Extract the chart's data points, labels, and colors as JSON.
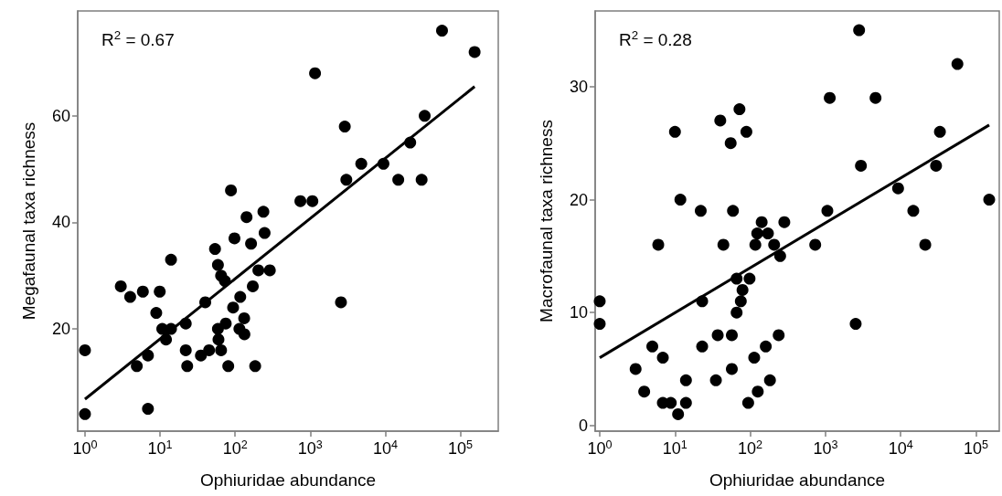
{
  "chart_data": [
    {
      "type": "scatter",
      "xlabel": "Ophiuridae abundance",
      "ylabel": "Megafaunal taxa richness",
      "annotations": [
        "R$^{2}$ = 0.67"
      ],
      "log": "x",
      "grid": false,
      "marker": "circle",
      "xlim": [
        0.8,
        320000
      ],
      "xticks": [
        {
          "value": 1,
          "label": "10$^{0}$"
        },
        {
          "value": 10,
          "label": "10$^{1}$"
        },
        {
          "value": 100,
          "label": "10$^{2}$"
        },
        {
          "value": 1000,
          "label": "10$^{3}$"
        },
        {
          "value": 10000,
          "label": "10$^{4}$"
        },
        {
          "value": 100000,
          "label": "10$^{5}$"
        }
      ],
      "ylim": [
        0.8,
        79.7
      ],
      "yticks": [
        20,
        40,
        60
      ],
      "series": [
        {
          "color": "#000000",
          "x": [
            1,
            1,
            3,
            4,
            5.9,
            9.9,
            8.9,
            4.9,
            6.9,
            6.9,
            14,
            10.7,
            14,
            12,
            22,
            22,
            23,
            40,
            35,
            45,
            54,
            59,
            65,
            73,
            59,
            75,
            60,
            65,
            81,
            88,
            98,
            94,
            117,
            132,
            114,
            133,
            142,
            238,
            163,
            247,
            172,
            185,
            204,
            290,
            1160,
            740,
            1070,
            2890,
            3030,
            2570,
            4790,
            9460,
            14900,
            30500,
            21500,
            33500,
            57000,
            155000
          ],
          "values": [
            16,
            4,
            28,
            26,
            27,
            27,
            23,
            13,
            15,
            5,
            33,
            20,
            20,
            18,
            21,
            16,
            13,
            25,
            15,
            16,
            35,
            32,
            30,
            29,
            20,
            21,
            18,
            16,
            13,
            46,
            37,
            24,
            26,
            22,
            20,
            19,
            41,
            42,
            36,
            38,
            28,
            13,
            31,
            31,
            68,
            44,
            44,
            58,
            48,
            25,
            51,
            51,
            48,
            48,
            55,
            60,
            76,
            72
          ]
        },
        {
          "type": "line",
          "color": "#000000",
          "line_style": "solid",
          "marker": "none",
          "x": [
            1,
            155000
          ],
          "values": [
            6.8,
            65.5
          ]
        }
      ]
    },
    {
      "type": "scatter",
      "xlabel": "Ophiuridae abundance",
      "ylabel": "Macrofaunal taxa richness",
      "annotations": [
        "R$^{2}$ = 0.28"
      ],
      "log": "x",
      "grid": false,
      "marker": "circle",
      "xlim": [
        0.87,
        204000
      ],
      "xticks": [
        {
          "value": 1,
          "label": "10$^{0}$"
        },
        {
          "value": 10,
          "label": "10$^{1}$"
        },
        {
          "value": 100,
          "label": "10$^{2}$"
        },
        {
          "value": 1000,
          "label": "10$^{3}$"
        },
        {
          "value": 10000,
          "label": "10$^{4}$"
        },
        {
          "value": 100000,
          "label": "10$^{5}$"
        }
      ],
      "ylim": [
        -0.5,
        36.7
      ],
      "yticks": [
        0,
        10,
        20,
        30
      ],
      "series": [
        {
          "color": "#000000",
          "x": [
            1,
            1,
            3,
            3.9,
            5,
            6,
            6.9,
            6.9,
            8.8,
            11,
            14,
            14,
            10,
            11.8,
            22,
            23,
            23,
            35,
            37,
            57,
            57,
            40,
            72,
            89,
            55,
            44,
            59,
            66,
            98,
            79,
            75,
            66,
            113,
            94,
            126,
            161,
            183,
            239,
            117,
            124,
            142,
            172,
            208,
            250,
            284,
            731,
            1060,
            1140,
            2800,
            2960,
            2520,
            4630,
            9230,
            14700,
            21200,
            29500,
            33200,
            56700,
            150000
          ],
          "values": [
            11,
            9,
            5,
            3,
            7,
            16,
            6,
            2,
            2,
            1,
            2,
            4,
            26,
            20,
            19,
            11,
            7,
            4,
            8,
            8,
            5,
            27,
            28,
            26,
            25,
            16,
            19,
            13,
            13,
            12,
            11,
            10,
            6,
            2,
            3,
            7,
            4,
            8,
            16,
            17,
            18,
            17,
            16,
            15,
            18,
            16,
            19,
            29,
            35,
            23,
            9,
            29,
            21,
            19,
            16,
            23,
            26,
            32,
            20
          ]
        },
        {
          "type": "line",
          "color": "#000000",
          "line_style": "solid",
          "marker": "none",
          "x": [
            1,
            150000
          ],
          "values": [
            6.0,
            26.6
          ]
        }
      ]
    }
  ]
}
